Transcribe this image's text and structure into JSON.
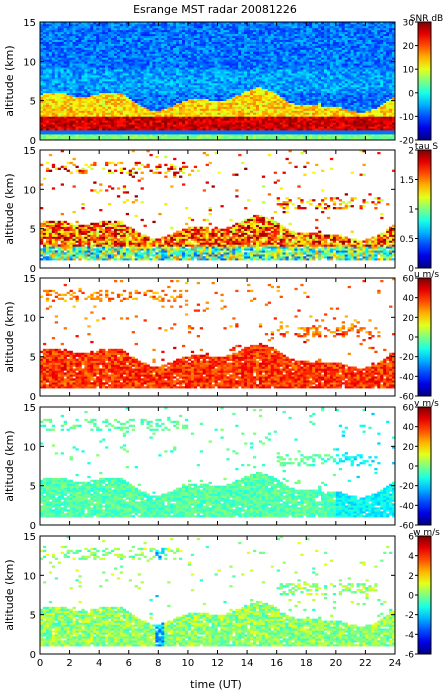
{
  "title": "Esrange MST radar 20081226",
  "chart_data": {
    "type": "heatmap",
    "title": "Esrange MST radar 20081226",
    "xlabel": "time (UT)",
    "xlim": [
      0,
      24
    ],
    "x_ticks": [
      0,
      2,
      4,
      6,
      8,
      10,
      12,
      14,
      16,
      18,
      20,
      22,
      24
    ],
    "colorscale": "jet",
    "panels": [
      {
        "ylabel": "altitude (km)",
        "ylim": [
          0,
          15
        ],
        "y_ticks": [
          0,
          5,
          10,
          15
        ],
        "colorbar_label": "SNR dB",
        "colorbar_range": [
          -20,
          30
        ],
        "colorbar_ticks": [
          30,
          20,
          10,
          0,
          -10,
          -20
        ],
        "data_summary": {
          "coverage_alt_km": [
            0,
            15
          ],
          "notes": "high SNR (~20-30 dB) below ~3 km, ~10 dB near 4-5 km, low (~-10 dB) above 6 km"
        }
      },
      {
        "ylabel": "altitude (km)",
        "ylim": [
          0,
          15
        ],
        "y_ticks": [
          0,
          5,
          10,
          15
        ],
        "colorbar_label": "tau S",
        "colorbar_range": [
          0,
          2
        ],
        "colorbar_ticks": [
          2,
          1.5,
          1,
          0.5,
          0
        ],
        "data_summary": {
          "coverage_alt_km": [
            1,
            13.5
          ],
          "notes": "values mostly 0.5-2 s within 1-7 km layer, sparse patches at 8-13 km"
        }
      },
      {
        "ylabel": "altitude (km)",
        "ylim": [
          0,
          15
        ],
        "y_ticks": [
          0,
          5,
          10,
          15
        ],
        "colorbar_label": "u m/s",
        "colorbar_range": [
          -60,
          60
        ],
        "colorbar_ticks": [
          60,
          40,
          20,
          0,
          -20,
          -40,
          -60
        ],
        "data_summary": {
          "coverage_alt_km": [
            1,
            13.5
          ],
          "notes": "eastward wind ~30-50 m/s in 1-6 km layer"
        }
      },
      {
        "ylabel": "altitude (km)",
        "ylim": [
          0,
          15
        ],
        "y_ticks": [
          0,
          5,
          10,
          15
        ],
        "colorbar_label": "v m/s",
        "colorbar_range": [
          -60,
          60
        ],
        "colorbar_ticks": [
          60,
          40,
          20,
          0,
          -20,
          -40,
          -60
        ],
        "data_summary": {
          "coverage_alt_km": [
            1,
            13.5
          ],
          "notes": "meridional wind ~-10 to 0 m/s, slightly negative around 20-24 UT"
        }
      },
      {
        "ylabel": "altitude (km)",
        "ylim": [
          0,
          15
        ],
        "y_ticks": [
          0,
          5,
          10,
          15
        ],
        "colorbar_label": "w m/s",
        "colorbar_range": [
          -6,
          6
        ],
        "colorbar_ticks": [
          6,
          4,
          2,
          0,
          -2,
          -4,
          -6
        ],
        "data_summary": {
          "coverage_alt_km": [
            1,
            13.5
          ],
          "notes": "vertical wind near 0 m/s, localized downward ~-3 m/s near 8 UT"
        }
      }
    ]
  }
}
